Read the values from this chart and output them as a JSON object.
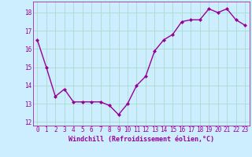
{
  "x": [
    0,
    1,
    2,
    3,
    4,
    5,
    6,
    7,
    8,
    9,
    10,
    11,
    12,
    13,
    14,
    15,
    16,
    17,
    18,
    19,
    20,
    21,
    22,
    23
  ],
  "y": [
    16.5,
    15.0,
    13.4,
    13.8,
    13.1,
    13.1,
    13.1,
    13.1,
    12.9,
    12.4,
    13.0,
    14.0,
    14.5,
    15.9,
    16.5,
    16.8,
    17.5,
    17.6,
    17.6,
    18.2,
    18.0,
    18.2,
    17.6,
    17.3
  ],
  "line_color": "#990099",
  "marker": "D",
  "marker_size": 2.0,
  "line_width": 1.0,
  "bg_color": "#cceeff",
  "grid_color": "#aaddcc",
  "xlabel": "Windchill (Refroidissement éolien,°C)",
  "xlabel_fontsize": 6.0,
  "xlabel_color": "#990099",
  "tick_color": "#990099",
  "tick_fontsize": 5.5,
  "xlim": [
    -0.5,
    23.5
  ],
  "ylim": [
    11.8,
    18.6
  ],
  "yticks": [
    12,
    13,
    14,
    15,
    16,
    17,
    18
  ],
  "xticks": [
    0,
    1,
    2,
    3,
    4,
    5,
    6,
    7,
    8,
    9,
    10,
    11,
    12,
    13,
    14,
    15,
    16,
    17,
    18,
    19,
    20,
    21,
    22,
    23
  ]
}
